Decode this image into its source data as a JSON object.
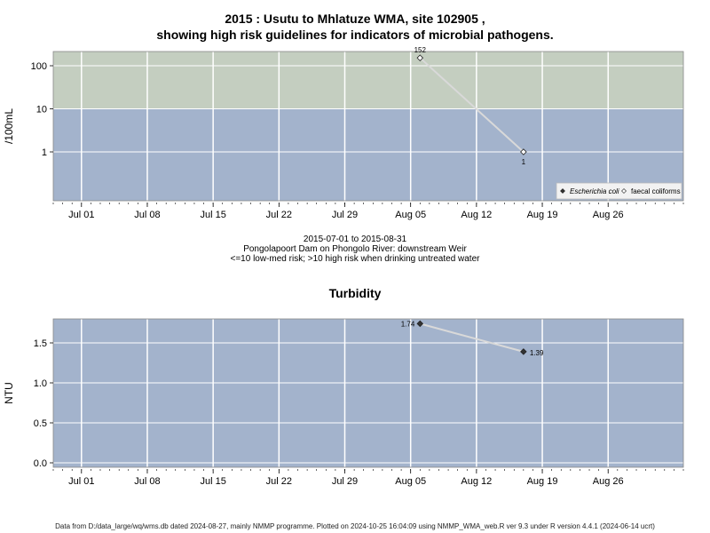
{
  "title_line1": "2015 : Usutu to Mhlatuze WMA, site 102905 ,",
  "title_line2": "showing high risk guidelines for indicators of microbial pathogens.",
  "info": {
    "date_range": "2015-07-01 to 2015-08-31",
    "site_name": "Pongolapoort Dam on Phongolo River: downstream Weir",
    "risk_note": "<=10 low-med risk; >10 high risk when drinking untreated water"
  },
  "turbidity_title": "Turbidity",
  "footer": "Data from D:/data_large/wq/wms.db dated 2024-08-27, mainly NMMP programme. Plotted on 2024-10-25 16:04:09 using NMMP_WMA_web.R ver 9.3 under R version 4.4.1 (2024-06-14 ucrt)",
  "colors": {
    "high_risk_band": "#c4cec0",
    "low_risk_band": "#a3b3cc",
    "grid": "#ffffff",
    "line": "#d9d9d9"
  },
  "chart_data": [
    {
      "type": "line",
      "ylabel": "/100mL",
      "yscale": "log",
      "yticks": [
        1,
        10,
        100
      ],
      "ytick_labels": [
        "1",
        "10",
        "100"
      ],
      "xlim": [
        "2015-06-28",
        "2015-09-03"
      ],
      "xticks": [
        "2015-07-01",
        "2015-07-08",
        "2015-07-15",
        "2015-07-22",
        "2015-07-29",
        "2015-08-05",
        "2015-08-12",
        "2015-08-19",
        "2015-08-26"
      ],
      "xtick_labels": [
        "Jul 01",
        "Jul 08",
        "Jul 15",
        "Jul 22",
        "Jul 29",
        "Aug 05",
        "Aug 12",
        "Aug 19",
        "Aug 26"
      ],
      "grid": true,
      "threshold": 10,
      "legend_position": "bottom-right",
      "series": [
        {
          "name": "Escherichia coli",
          "marker": "filled-diamond",
          "x": [],
          "y": []
        },
        {
          "name": "faecal coliforms",
          "marker": "open-diamond",
          "x": [
            "2015-08-06",
            "2015-08-17"
          ],
          "y": [
            152,
            1
          ],
          "labels": [
            "152",
            "1"
          ]
        }
      ]
    },
    {
      "type": "line",
      "ylabel": "NTU",
      "ylim": [
        0,
        1.8
      ],
      "yticks": [
        0,
        0.5,
        1,
        1.5
      ],
      "ytick_labels": [
        "0.0",
        "0.5",
        "1.0",
        "1.5"
      ],
      "xlim": [
        "2015-06-28",
        "2015-09-03"
      ],
      "xticks": [
        "2015-07-01",
        "2015-07-08",
        "2015-07-15",
        "2015-07-22",
        "2015-07-29",
        "2015-08-05",
        "2015-08-12",
        "2015-08-19",
        "2015-08-26"
      ],
      "xtick_labels": [
        "Jul 01",
        "Jul 08",
        "Jul 15",
        "Jul 22",
        "Jul 29",
        "Aug 05",
        "Aug 12",
        "Aug 19",
        "Aug 26"
      ],
      "grid": true,
      "series": [
        {
          "name": "Turbidity",
          "marker": "filled-diamond",
          "x": [
            "2015-08-06",
            "2015-08-17"
          ],
          "y": [
            1.74,
            1.39
          ],
          "labels": [
            "1.74",
            "1.39"
          ]
        }
      ]
    }
  ]
}
